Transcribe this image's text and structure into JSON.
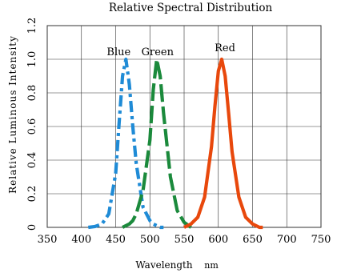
{
  "chart_data": {
    "type": "line",
    "title": "Relative Spectral Distribution",
    "xlabel": "Wavelength",
    "xunit": "nm",
    "ylabel": "Relative Luminous Intensity",
    "xlim": [
      350,
      750
    ],
    "ylim": [
      0,
      1.2
    ],
    "x_ticks": [
      350,
      400,
      450,
      500,
      550,
      600,
      650,
      700,
      750
    ],
    "y_ticks": [
      0,
      0.2,
      0.4,
      0.6,
      0.8,
      1.0,
      1.2
    ],
    "y_tick_labels": [
      "0",
      "0.2",
      "0.4",
      "0.6",
      "0.8",
      "1.0",
      "1.2"
    ],
    "grid": true,
    "x": [
      410,
      420,
      430,
      440,
      450,
      455,
      460,
      465,
      470,
      475,
      480,
      490,
      500,
      505,
      510,
      515,
      520,
      530,
      540,
      550,
      560,
      570,
      580,
      590,
      595,
      600,
      605,
      610,
      615,
      620,
      630,
      640,
      650,
      660,
      665
    ],
    "series": [
      {
        "name": "Blue",
        "color": "#1f8bd6",
        "dash": "dash-dot",
        "values": [
          0.0,
          0.005,
          0.02,
          0.08,
          0.32,
          0.62,
          0.9,
          1.0,
          0.85,
          0.6,
          0.38,
          0.12,
          0.04,
          0.02,
          0.01,
          0.0,
          0.0,
          null,
          null,
          null,
          null,
          null,
          null,
          null,
          null,
          null,
          null,
          null,
          null,
          null,
          null,
          null,
          null,
          null,
          null
        ]
      },
      {
        "name": "Green",
        "color": "#1b8a3c",
        "dash": "long-dash",
        "values": [
          null,
          null,
          null,
          null,
          null,
          null,
          0.0,
          0.01,
          0.02,
          0.04,
          0.08,
          0.22,
          0.52,
          0.82,
          1.0,
          0.9,
          0.68,
          0.3,
          0.1,
          0.03,
          0.0,
          null,
          null,
          null,
          null,
          null,
          null,
          null,
          null,
          null,
          null,
          null,
          null,
          null,
          null
        ]
      },
      {
        "name": "Red",
        "color": "#e8480c",
        "dash": "solid",
        "values": [
          null,
          null,
          null,
          null,
          null,
          null,
          null,
          null,
          null,
          null,
          null,
          null,
          null,
          null,
          null,
          null,
          null,
          null,
          null,
          0.0,
          0.02,
          0.06,
          0.18,
          0.48,
          0.72,
          0.93,
          1.0,
          0.9,
          0.68,
          0.45,
          0.18,
          0.06,
          0.02,
          0.0,
          0.0
        ]
      }
    ]
  }
}
